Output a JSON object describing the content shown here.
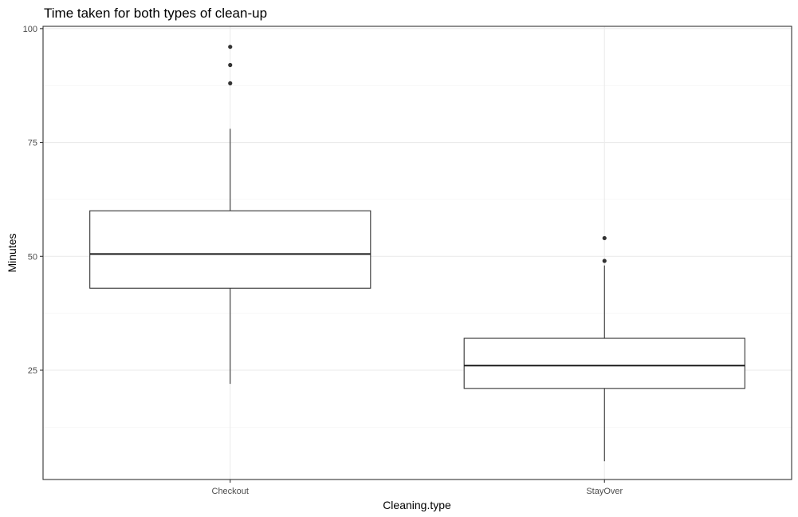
{
  "chart_data": {
    "type": "boxplot",
    "title": "Time taken for both types of clean-up",
    "xlabel": "Cleaning.type",
    "ylabel": "Minutes",
    "ylim": [
      1,
      100.5
    ],
    "yticks": [
      25,
      50,
      75,
      100
    ],
    "grid": true,
    "categories": [
      "Checkout",
      "StayOver"
    ],
    "boxes": [
      {
        "category": "Checkout",
        "whisker_low": 22,
        "q1": 43,
        "median": 50.5,
        "q3": 60,
        "whisker_high": 78,
        "outliers": [
          88,
          92,
          96
        ]
      },
      {
        "category": "StayOver",
        "whisker_low": 5,
        "q1": 21,
        "median": 26,
        "q3": 32,
        "whisker_high": 48,
        "outliers": [
          49,
          54
        ]
      }
    ],
    "colors": {
      "box_fill": "#ffffff",
      "box_stroke": "#333333",
      "grid": "#ebebeb"
    }
  }
}
